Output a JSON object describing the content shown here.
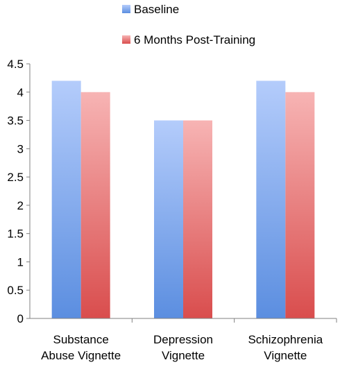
{
  "chart_data": {
    "type": "bar",
    "title": "",
    "xlabel": "",
    "ylabel": "",
    "categories": [
      [
        "Substance",
        "Abuse Vignette"
      ],
      [
        "Depression",
        "Vignette"
      ],
      [
        "Schizophrenia",
        "Vignette"
      ]
    ],
    "series": [
      {
        "name": "Baseline",
        "values": [
          4.2,
          3.5,
          4.2
        ],
        "color_top": "#b4ccfb",
        "color_bottom": "#5b8ee0"
      },
      {
        "name": "6 Months Post-Training",
        "values": [
          4.0,
          3.5,
          4.0
        ],
        "color_top": "#f7b4b4",
        "color_bottom": "#d94d4d"
      }
    ],
    "ylim": [
      0,
      4.5
    ],
    "yticks": [
      "0",
      "0.5",
      "1",
      "1.5",
      "2",
      "2.5",
      "3",
      "3.5",
      "4",
      "4.5"
    ],
    "grid": false,
    "legend_position": "top"
  }
}
